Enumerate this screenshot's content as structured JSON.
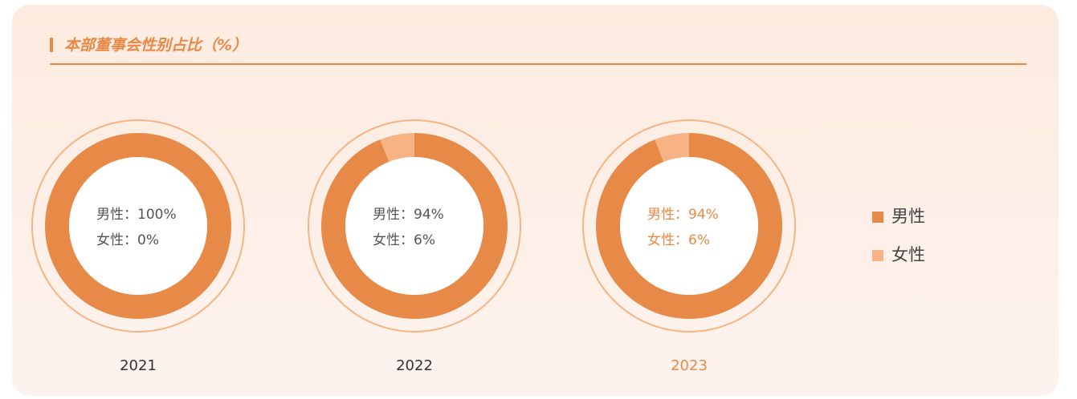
{
  "header": {
    "title": "本部董事会性别占比（%）"
  },
  "chart_data": [
    {
      "type": "pie",
      "title": "2021",
      "categories": [
        "男性",
        "女性"
      ],
      "values": [
        100,
        0
      ],
      "value_labels": [
        "男性：100%",
        "女性：0%"
      ],
      "colors": [
        "#e88a47",
        "#f7b384"
      ],
      "text_color": "#555555"
    },
    {
      "type": "pie",
      "title": "2022",
      "categories": [
        "男性",
        "女性"
      ],
      "values": [
        94,
        6
      ],
      "value_labels": [
        "男性：94%",
        "女性：6%"
      ],
      "colors": [
        "#e88a47",
        "#f7b384"
      ],
      "text_color": "#555555"
    },
    {
      "type": "pie",
      "title": "2023",
      "categories": [
        "男性",
        "女性"
      ],
      "values": [
        94,
        6
      ],
      "value_labels": [
        "男性：94%",
        "女性：6%"
      ],
      "colors": [
        "#e88a47",
        "#f7b384"
      ],
      "text_color": "#e88a47"
    }
  ]
}
